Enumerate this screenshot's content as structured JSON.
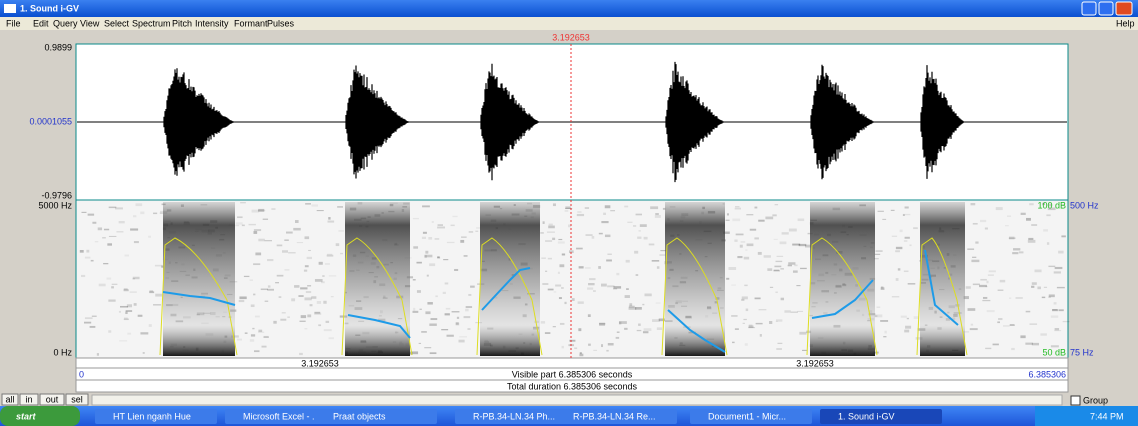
{
  "window": {
    "title": "1. Sound i-GV"
  },
  "menu": [
    "File",
    "Edit",
    "Query",
    "View",
    "Select",
    "Spectrum",
    "Pitch",
    "Intensity",
    "Formant",
    "Pulses"
  ],
  "help": "Help",
  "cursor_time": "3.192653",
  "waveform": {
    "max": "0.9899",
    "zero": "0.0001055",
    "min": "-0.9796"
  },
  "spectrogram": {
    "freq_max": "5000 Hz",
    "freq_min": "0 Hz",
    "db_max": "100 dB",
    "db_min": "50 dB",
    "pitch_max": "500 Hz",
    "pitch_min": "75 Hz"
  },
  "time_bar": {
    "left_cursor": "3.192653",
    "right_cursor": "3.192653",
    "start": "0",
    "visible": "Visible part 6.385306 seconds",
    "end": "6.385306",
    "total": "Total duration 6.385306 seconds"
  },
  "buttons": [
    "all",
    "in",
    "out",
    "sel"
  ],
  "group": "Group",
  "taskbar": {
    "start": "start",
    "items": [
      "HT Lien nganh Hue",
      "Microsoft Excel - ...",
      "Praat objects",
      "R-PB.34-LN.34 Ph...",
      "R-PB.34-LN.34 Re...",
      "Document1 - Micr...",
      "1. Sound i-GV"
    ],
    "clock": "7:44 PM"
  }
}
